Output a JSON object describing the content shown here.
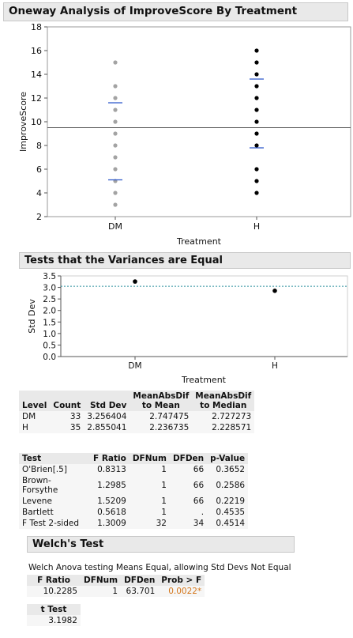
{
  "oneway": {
    "title": "Oneway Analysis of ImproveScore By Treatment",
    "ylabel": "ImproveScore",
    "xlabel": "Treatment",
    "yticks": [
      "2",
      "4",
      "6",
      "8",
      "10",
      "12",
      "14",
      "16",
      "18"
    ],
    "groups": [
      "DM",
      "H"
    ]
  },
  "variance_header": "Tests that the Variances are Equal",
  "std_plot": {
    "ylabel": "Std Dev",
    "xlabel": "Treatment",
    "yticks": [
      "0.0",
      "0.5",
      "1.0",
      "1.5",
      "2.0",
      "2.5",
      "3.0",
      "3.5"
    ],
    "groups": [
      "DM",
      "H"
    ]
  },
  "level_table": {
    "headers": [
      "Level",
      "Count",
      "Std Dev",
      "MeanAbsDif to Mean",
      "MeanAbsDif to Median"
    ],
    "h_mad_mean": [
      "MeanAbsDif",
      "to Mean"
    ],
    "h_mad_median": [
      "MeanAbsDif",
      "to Median"
    ],
    "rows": [
      {
        "level": "DM",
        "count": "33",
        "std": "3.256404",
        "mad_mean": "2.747475",
        "mad_median": "2.727273"
      },
      {
        "level": "H",
        "count": "35",
        "std": "2.855041",
        "mad_mean": "2.236735",
        "mad_median": "2.228571"
      }
    ]
  },
  "test_table": {
    "headers": [
      "Test",
      "F Ratio",
      "DFNum",
      "DFDen",
      "p-Value"
    ],
    "rows": [
      {
        "test": "O'Brien[.5]",
        "f": "0.8313",
        "dfn": "1",
        "dfd": "66",
        "p": "0.3652"
      },
      {
        "test": "Brown-Forsythe",
        "f": "1.2985",
        "dfn": "1",
        "dfd": "66",
        "p": "0.2586"
      },
      {
        "test": "Levene",
        "f": "1.5209",
        "dfn": "1",
        "dfd": "66",
        "p": "0.2219"
      },
      {
        "test": "Bartlett",
        "f": "0.5618",
        "dfn": "1",
        "dfd": ".",
        "p": "0.4535"
      },
      {
        "test": "F Test 2-sided",
        "f": "1.3009",
        "dfn": "32",
        "dfd": "34",
        "p": "0.4514"
      }
    ]
  },
  "welch": {
    "title": "Welch's Test",
    "note": "Welch Anova testing Means Equal, allowing Std Devs Not Equal",
    "headers": [
      "F Ratio",
      "DFNum",
      "DFDen",
      "Prob > F"
    ],
    "values": {
      "f": "10.2285",
      "dfn": "1",
      "dfd": "63.701",
      "p": "0.0022*"
    },
    "t_header": "t Test",
    "t_value": "3.1982"
  },
  "chart_data": [
    {
      "type": "scatter",
      "title": "Oneway Analysis of ImproveScore By Treatment",
      "xlabel": "Treatment",
      "ylabel": "ImproveScore",
      "categories": [
        "DM",
        "H"
      ],
      "ylim": [
        2,
        18
      ],
      "series": [
        {
          "name": "DM",
          "values": [
            3,
            4,
            5,
            6,
            7,
            8,
            9,
            10,
            11,
            12,
            13,
            15
          ],
          "color": "#a3a3a3"
        },
        {
          "name": "H",
          "values": [
            4,
            5,
            6,
            8,
            9,
            10,
            11,
            12,
            13,
            14,
            15,
            16
          ],
          "color": "#000000"
        }
      ],
      "means_lines": [
        {
          "group": "DM",
          "upper": 11.6,
          "lower": 5.1
        },
        {
          "group": "H",
          "upper": 13.6,
          "lower": 7.8
        }
      ],
      "grand_mean": 9.5
    },
    {
      "type": "scatter",
      "xlabel": "Treatment",
      "ylabel": "Std Dev",
      "categories": [
        "DM",
        "H"
      ],
      "values": [
        3.256404,
        2.855041
      ],
      "ylim": [
        0,
        3.5
      ],
      "reference_line": 3.05
    }
  ]
}
